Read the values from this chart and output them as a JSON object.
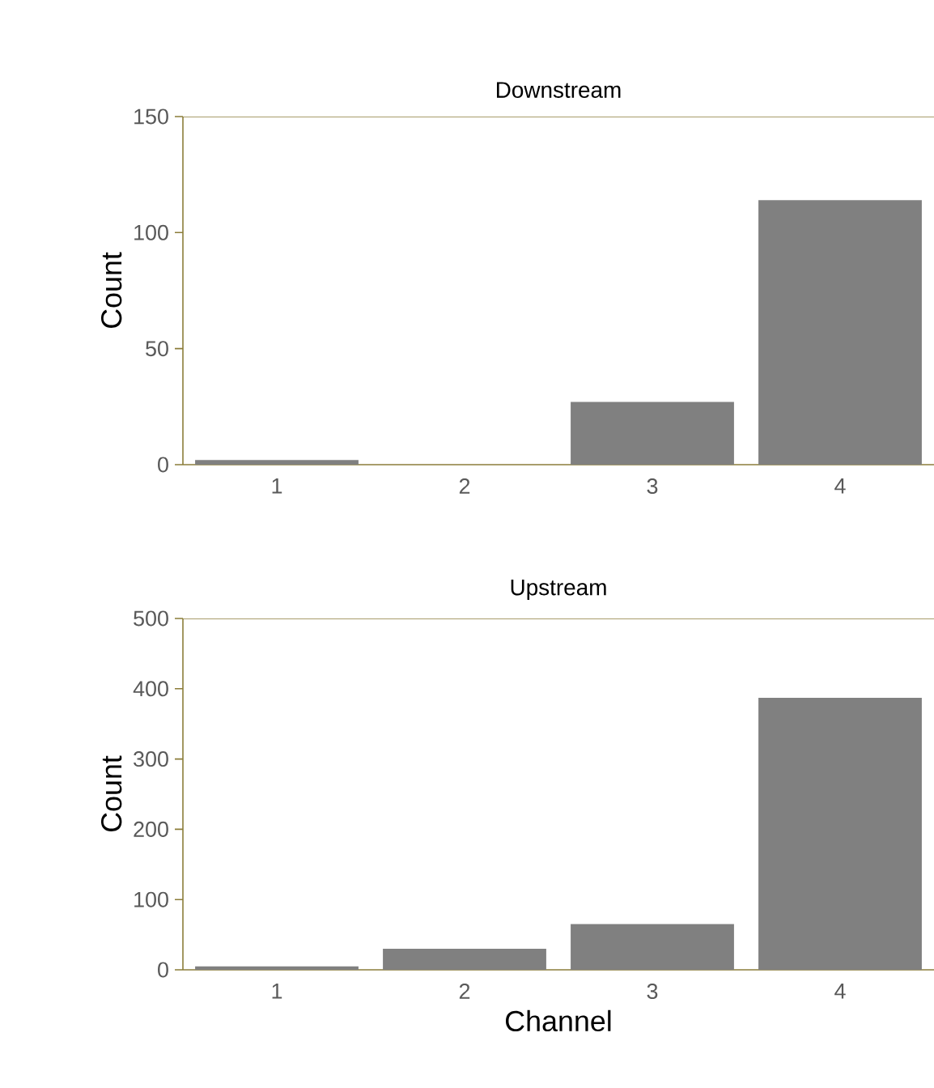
{
  "chart_data": [
    {
      "type": "bar",
      "title": "Downstream",
      "ylabel": "Count",
      "categories": [
        "1",
        "2",
        "3",
        "4"
      ],
      "values": [
        2,
        0,
        27,
        114
      ],
      "color": "#808080",
      "ylim": [
        0,
        150
      ],
      "yticks": [
        0,
        50,
        100,
        150
      ]
    },
    {
      "type": "bar",
      "title": "Upstream",
      "xlabel": "Channel",
      "ylabel": "Count",
      "categories": [
        "1",
        "2",
        "3",
        "4"
      ],
      "values": [
        5,
        30,
        65,
        387
      ],
      "color": "#808080",
      "ylim": [
        0,
        500
      ],
      "yticks": [
        0,
        100,
        200,
        300,
        400,
        500
      ]
    }
  ]
}
